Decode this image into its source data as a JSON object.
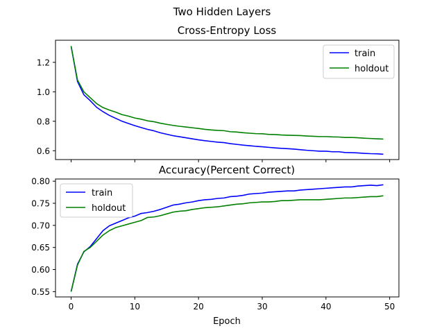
{
  "figure": {
    "suptitle": "Two Hidden Layers"
  },
  "chart_data": [
    {
      "type": "line",
      "title": "Cross-Entropy Loss",
      "xlabel": "",
      "ylabel": "",
      "xlim": [
        -2.45,
        51.45
      ],
      "ylim": [
        0.54,
        1.35
      ],
      "xticks": [
        0,
        10,
        20,
        30,
        40,
        50
      ],
      "show_xticklabels": false,
      "yticks": [
        0.6,
        0.8,
        1.0,
        1.2
      ],
      "yticklabels": [
        "0.6",
        "0.8",
        "1.0",
        "1.2"
      ],
      "grid": false,
      "legend_position": "upper right",
      "x": [
        0,
        1,
        2,
        3,
        4,
        5,
        6,
        7,
        8,
        9,
        10,
        11,
        12,
        13,
        14,
        15,
        16,
        17,
        18,
        19,
        20,
        21,
        22,
        23,
        24,
        25,
        26,
        27,
        28,
        29,
        30,
        31,
        32,
        33,
        34,
        35,
        36,
        37,
        38,
        39,
        40,
        41,
        42,
        43,
        44,
        45,
        46,
        47,
        48,
        49
      ],
      "series": [
        {
          "name": "train",
          "color": "#0000ff",
          "values": [
            1.31,
            1.07,
            0.98,
            0.94,
            0.895,
            0.865,
            0.84,
            0.82,
            0.8,
            0.785,
            0.77,
            0.757,
            0.745,
            0.735,
            0.722,
            0.712,
            0.702,
            0.695,
            0.688,
            0.681,
            0.674,
            0.668,
            0.663,
            0.658,
            0.655,
            0.648,
            0.643,
            0.638,
            0.634,
            0.63,
            0.627,
            0.623,
            0.619,
            0.616,
            0.614,
            0.611,
            0.607,
            0.603,
            0.6,
            0.597,
            0.597,
            0.593,
            0.593,
            0.588,
            0.587,
            0.585,
            0.582,
            0.58,
            0.579,
            0.576
          ]
        },
        {
          "name": "holdout",
          "color": "#008000",
          "values": [
            1.31,
            1.08,
            1.0,
            0.96,
            0.92,
            0.893,
            0.876,
            0.862,
            0.845,
            0.835,
            0.822,
            0.814,
            0.803,
            0.797,
            0.787,
            0.779,
            0.772,
            0.766,
            0.761,
            0.756,
            0.751,
            0.745,
            0.741,
            0.738,
            0.736,
            0.729,
            0.727,
            0.722,
            0.719,
            0.716,
            0.715,
            0.711,
            0.71,
            0.707,
            0.705,
            0.704,
            0.703,
            0.7,
            0.698,
            0.696,
            0.696,
            0.694,
            0.693,
            0.69,
            0.69,
            0.688,
            0.685,
            0.683,
            0.681,
            0.679
          ]
        }
      ]
    },
    {
      "type": "line",
      "title": "Accuracy(Percent Correct)",
      "xlabel": "Epoch",
      "ylabel": "",
      "xlim": [
        -2.45,
        51.45
      ],
      "ylim": [
        0.538,
        0.805
      ],
      "xticks": [
        0,
        10,
        20,
        30,
        40,
        50
      ],
      "xticklabels": [
        "0",
        "10",
        "20",
        "30",
        "40",
        "50"
      ],
      "show_xticklabels": true,
      "yticks": [
        0.55,
        0.6,
        0.65,
        0.7,
        0.75,
        0.8
      ],
      "yticklabels": [
        "0.55",
        "0.60",
        "0.65",
        "0.70",
        "0.75",
        "0.80"
      ],
      "grid": false,
      "legend_position": "upper left",
      "x": [
        0,
        1,
        2,
        3,
        4,
        5,
        6,
        7,
        8,
        9,
        10,
        11,
        12,
        13,
        14,
        15,
        16,
        17,
        18,
        19,
        20,
        21,
        22,
        23,
        24,
        25,
        26,
        27,
        28,
        29,
        30,
        31,
        32,
        33,
        34,
        35,
        36,
        37,
        38,
        39,
        40,
        41,
        42,
        43,
        44,
        45,
        46,
        47,
        48,
        49
      ],
      "series": [
        {
          "name": "train",
          "color": "#0000ff",
          "values": [
            0.55,
            0.612,
            0.64,
            0.652,
            0.67,
            0.688,
            0.699,
            0.705,
            0.711,
            0.717,
            0.721,
            0.727,
            0.729,
            0.732,
            0.736,
            0.741,
            0.746,
            0.748,
            0.751,
            0.753,
            0.756,
            0.758,
            0.759,
            0.761,
            0.762,
            0.765,
            0.766,
            0.768,
            0.771,
            0.772,
            0.773,
            0.775,
            0.776,
            0.777,
            0.778,
            0.778,
            0.78,
            0.781,
            0.782,
            0.783,
            0.784,
            0.785,
            0.786,
            0.787,
            0.787,
            0.789,
            0.79,
            0.791,
            0.79,
            0.792
          ]
        },
        {
          "name": "holdout",
          "color": "#008000",
          "values": [
            0.55,
            0.61,
            0.641,
            0.65,
            0.664,
            0.678,
            0.688,
            0.695,
            0.699,
            0.703,
            0.707,
            0.711,
            0.718,
            0.719,
            0.722,
            0.726,
            0.73,
            0.732,
            0.733,
            0.736,
            0.738,
            0.74,
            0.741,
            0.742,
            0.744,
            0.746,
            0.748,
            0.749,
            0.751,
            0.752,
            0.753,
            0.753,
            0.754,
            0.756,
            0.756,
            0.757,
            0.758,
            0.758,
            0.758,
            0.758,
            0.759,
            0.76,
            0.761,
            0.762,
            0.762,
            0.763,
            0.764,
            0.765,
            0.765,
            0.767
          ]
        }
      ]
    }
  ]
}
